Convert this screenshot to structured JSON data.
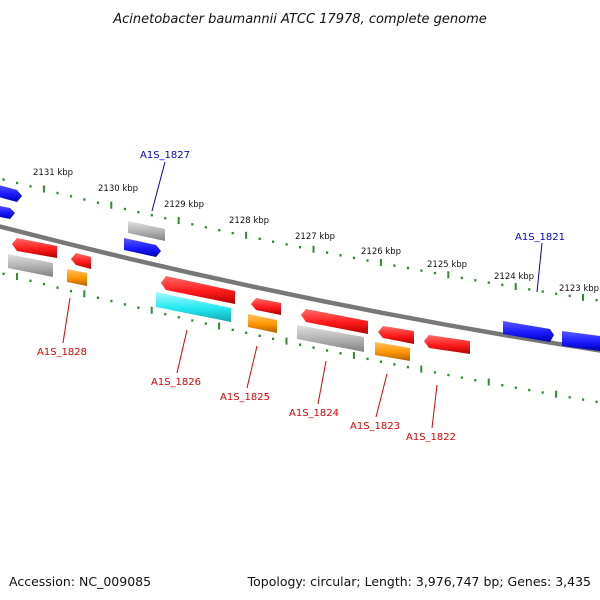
{
  "title": "Acinetobacter baumannii ATCC 17978, complete genome",
  "footer": {
    "accession": "Accession: NC_009085",
    "summary": "Topology: circular; Length: 3,976,747 bp; Genes: 3,435"
  },
  "colors": {
    "backbone": "#7a7a7a",
    "tick": "#2e8b2e",
    "forward_label": "#0000cc",
    "reverse_label": "#dd0000",
    "gene_blue": "#1a1aff",
    "gene_red": "#ff1a1a",
    "gene_gray": "#b0b0b0",
    "gene_orange": "#ff9500",
    "gene_cyan": "#22e8f0"
  },
  "scale_labels": [
    "2131 kbp",
    "2130 kbp",
    "2129 kbp",
    "2128 kbp",
    "2127 kbp",
    "2126 kbp",
    "2125 kbp",
    "2124 kbp",
    "2123 kbp"
  ],
  "gene_labels": {
    "forward": [
      "A1S_1827",
      "A1S_1821"
    ],
    "reverse": [
      "A1S_1828",
      "A1S_1826",
      "A1S_1825",
      "A1S_1824",
      "A1S_1823",
      "A1S_1822"
    ]
  }
}
